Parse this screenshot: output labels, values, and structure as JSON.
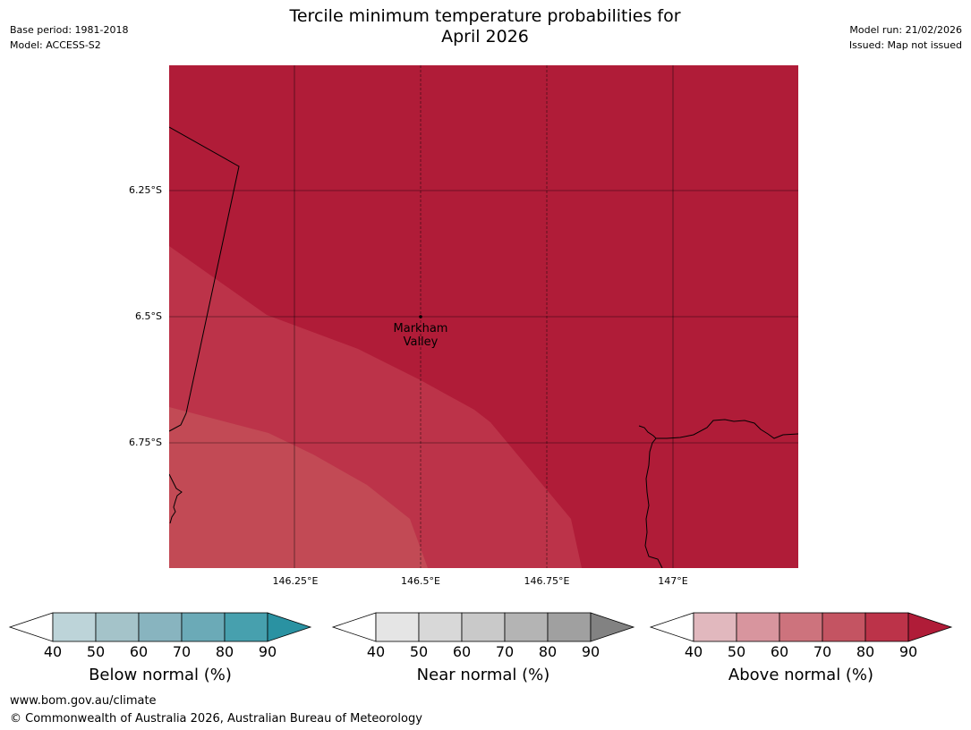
{
  "title": {
    "line1": "Tercile minimum temperature probabilities for",
    "line2": "April 2026"
  },
  "meta": {
    "base_period": "Base period: 1981-2018",
    "model": "Model: ACCESS-S2",
    "model_run": "Model run: 21/02/2026",
    "issued": "Issued: Map not issued"
  },
  "map": {
    "latitudes": [
      "6.25°S",
      "6.5°S",
      "6.75°S"
    ],
    "longitudes": [
      "146.25°E",
      "146.5°E",
      "146.75°E",
      "147°E"
    ],
    "place": {
      "name_line1": "Markham",
      "name_line2": "Valley"
    },
    "colors": {
      "above_90": "#b01c38",
      "above_80": "#bc3349",
      "above_70": "#c24a55",
      "grid": "#000000",
      "coast": "#000000"
    }
  },
  "colorbars": [
    {
      "label": "Below normal (%)",
      "ticks": [
        "40",
        "50",
        "60",
        "70",
        "80",
        "90"
      ],
      "colors": [
        "#bdd4d9",
        "#a4c3c9",
        "#88b4bf",
        "#6baab7",
        "#47a0ae",
        "#2a92a2"
      ]
    },
    {
      "label": "Near normal (%)",
      "ticks": [
        "40",
        "50",
        "60",
        "70",
        "80",
        "90"
      ],
      "colors": [
        "#e5e5e5",
        "#d8d8d8",
        "#c9c9c9",
        "#b4b4b4",
        "#a0a0a0",
        "#828282"
      ]
    },
    {
      "label": "Above normal (%)",
      "ticks": [
        "40",
        "50",
        "60",
        "70",
        "80",
        "90"
      ],
      "colors": [
        "#e1b8be",
        "#d8959e",
        "#cd737d",
        "#c45462",
        "#bc3349",
        "#b01c38"
      ]
    }
  ],
  "footer": {
    "url": "www.bom.gov.au/climate",
    "copyright": "© Commonwealth of Australia 2026, Australian Bureau of Meteorology"
  }
}
